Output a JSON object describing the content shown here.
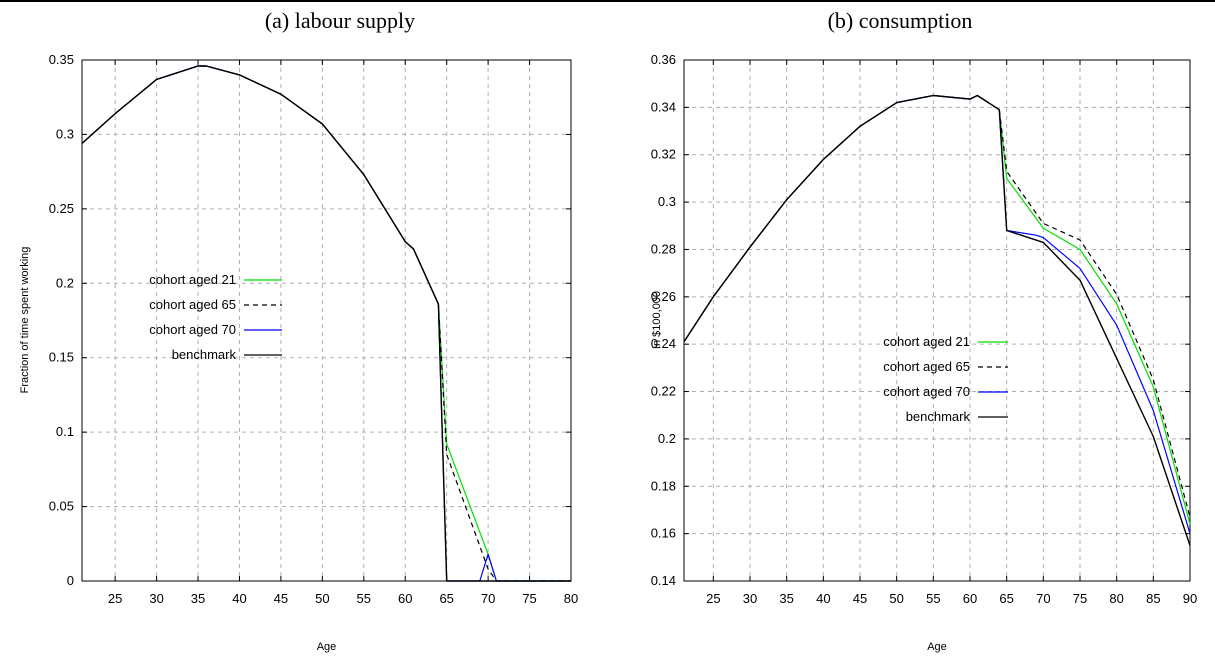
{
  "chart_data": [
    {
      "type": "line",
      "title": "(a) labour supply",
      "xlabel": "Age",
      "ylabel": "Fraction of time spent working",
      "xlim": [
        21,
        80
      ],
      "ylim": [
        0,
        0.35
      ],
      "xticks": [
        "25",
        "30",
        "35",
        "40",
        "45",
        "50",
        "55",
        "60",
        "65",
        "70",
        "75",
        "80"
      ],
      "yticks": [
        "0",
        "0.05",
        "0.1",
        "0.15",
        "0.2",
        "0.25",
        "0.3",
        "0.35"
      ],
      "grid": true,
      "legend_position": "center-left",
      "series": [
        {
          "name": "cohort aged 21",
          "color": "#00e000",
          "dash": "solid",
          "x": [
            21,
            25,
            30,
            35,
            36,
            40,
            45,
            50,
            55,
            60,
            61,
            64,
            65,
            70,
            71,
            80
          ],
          "y": [
            0.294,
            0.314,
            0.337,
            0.346,
            0.346,
            0.34,
            0.327,
            0.307,
            0.273,
            0.228,
            0.223,
            0.186,
            0.092,
            0.018,
            0,
            0
          ]
        },
        {
          "name": "cohort aged 65",
          "color": "#000000",
          "dash": "dashed",
          "x": [
            21,
            25,
            30,
            35,
            36,
            40,
            45,
            50,
            55,
            60,
            61,
            64,
            65,
            70,
            71,
            80
          ],
          "y": [
            0.294,
            0.314,
            0.337,
            0.346,
            0.346,
            0.34,
            0.327,
            0.307,
            0.273,
            0.228,
            0.223,
            0.186,
            0.085,
            0.008,
            0,
            0
          ]
        },
        {
          "name": "cohort aged 70",
          "color": "#0000ff",
          "dash": "solid",
          "x": [
            21,
            25,
            30,
            35,
            36,
            40,
            45,
            50,
            55,
            60,
            61,
            64,
            65,
            69,
            70,
            71,
            80
          ],
          "y": [
            0.294,
            0.314,
            0.337,
            0.346,
            0.346,
            0.34,
            0.327,
            0.307,
            0.273,
            0.228,
            0.223,
            0.186,
            0,
            0,
            0.018,
            0,
            0
          ]
        },
        {
          "name": "benchmark",
          "color": "#000000",
          "dash": "solid",
          "x": [
            21,
            25,
            30,
            35,
            36,
            40,
            45,
            50,
            55,
            60,
            61,
            64,
            65,
            80
          ],
          "y": [
            0.294,
            0.314,
            0.337,
            0.346,
            0.346,
            0.34,
            0.327,
            0.307,
            0.273,
            0.228,
            0.223,
            0.186,
            0,
            0
          ]
        }
      ]
    },
    {
      "type": "line",
      "title": "(b) consumption",
      "xlabel": "Age",
      "ylabel": "In $100,000",
      "xlim": [
        21,
        90
      ],
      "ylim": [
        0.14,
        0.36
      ],
      "xticks": [
        "25",
        "30",
        "35",
        "40",
        "45",
        "50",
        "55",
        "60",
        "65",
        "70",
        "75",
        "80",
        "85",
        "90"
      ],
      "yticks": [
        "0.14",
        "0.16",
        "0.18",
        "0.2",
        "0.22",
        "0.24",
        "0.26",
        "0.28",
        "0.3",
        "0.32",
        "0.34",
        "0.36"
      ],
      "grid": true,
      "legend_position": "center",
      "series": [
        {
          "name": "cohort aged 21",
          "color": "#00e000",
          "dash": "solid",
          "x": [
            21,
            25,
            30,
            35,
            40,
            45,
            50,
            55,
            60,
            61,
            64,
            65,
            70,
            75,
            80,
            85,
            90
          ],
          "y": [
            0.241,
            0.26,
            0.281,
            0.301,
            0.318,
            0.332,
            0.342,
            0.345,
            0.3435,
            0.345,
            0.339,
            0.31,
            0.289,
            0.28,
            0.257,
            0.222,
            0.164
          ]
        },
        {
          "name": "cohort aged 65",
          "color": "#000000",
          "dash": "dashed",
          "x": [
            21,
            25,
            30,
            35,
            40,
            45,
            50,
            55,
            60,
            61,
            64,
            65,
            70,
            75,
            80,
            85,
            90
          ],
          "y": [
            0.241,
            0.26,
            0.281,
            0.301,
            0.318,
            0.332,
            0.342,
            0.345,
            0.3435,
            0.345,
            0.339,
            0.313,
            0.291,
            0.284,
            0.261,
            0.225,
            0.167
          ]
        },
        {
          "name": "cohort aged 70",
          "color": "#0000ff",
          "dash": "solid",
          "x": [
            21,
            25,
            30,
            35,
            40,
            45,
            50,
            55,
            60,
            61,
            64,
            65,
            69,
            70,
            75,
            80,
            85,
            90
          ],
          "y": [
            0.241,
            0.26,
            0.281,
            0.301,
            0.318,
            0.332,
            0.342,
            0.345,
            0.3435,
            0.345,
            0.339,
            0.288,
            0.286,
            0.285,
            0.272,
            0.248,
            0.212,
            0.16
          ]
        },
        {
          "name": "benchmark",
          "color": "#000000",
          "dash": "solid",
          "x": [
            21,
            25,
            30,
            35,
            40,
            45,
            50,
            55,
            60,
            61,
            64,
            65,
            70,
            75,
            80,
            85,
            90
          ],
          "y": [
            0.241,
            0.26,
            0.281,
            0.301,
            0.318,
            0.332,
            0.342,
            0.345,
            0.3435,
            0.345,
            0.339,
            0.288,
            0.283,
            0.267,
            0.234,
            0.201,
            0.155
          ]
        }
      ]
    }
  ]
}
